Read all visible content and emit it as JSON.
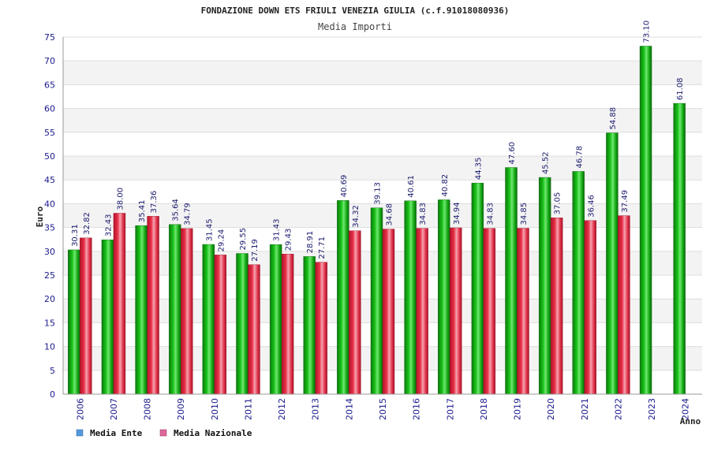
{
  "chart_data": {
    "type": "bar",
    "title": "FONDAZIONE DOWN ETS FRIULI VENEZIA GIULIA (c.f.91018080936)",
    "subtitle": "Media Importi",
    "xlabel": "Anno",
    "ylabel": "Euro",
    "ylim": [
      0,
      75
    ],
    "yticks": [
      0,
      5,
      10,
      15,
      20,
      25,
      30,
      35,
      40,
      45,
      50,
      55,
      60,
      65,
      70,
      75
    ],
    "grid": true,
    "legend_position": "bottom-left",
    "categories": [
      "2006",
      "2007",
      "2008",
      "2009",
      "2010",
      "2011",
      "2012",
      "2013",
      "2014",
      "2015",
      "2016",
      "2017",
      "2018",
      "2019",
      "2020",
      "2021",
      "2022",
      "2023",
      "2024"
    ],
    "series": [
      {
        "name": "Media Ente",
        "color": "#1fae1f",
        "legend_color": "#5599dd",
        "values": [
          30.31,
          32.43,
          35.41,
          35.64,
          31.45,
          29.55,
          31.43,
          28.91,
          40.69,
          39.13,
          40.61,
          40.82,
          44.35,
          47.6,
          45.52,
          46.78,
          54.88,
          73.1,
          61.08
        ]
      },
      {
        "name": "Media Nazionale",
        "color": "#e8334a",
        "legend_color": "#dd6699",
        "values": [
          32.82,
          38.0,
          37.36,
          34.79,
          29.24,
          27.19,
          29.43,
          27.71,
          34.32,
          34.68,
          34.83,
          34.94,
          34.83,
          34.85,
          37.05,
          36.46,
          37.49,
          null,
          null
        ]
      }
    ]
  }
}
